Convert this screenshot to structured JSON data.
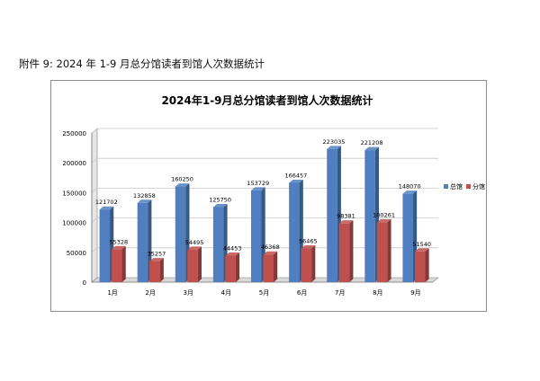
{
  "document": {
    "heading": "附件 9: 2024 年 1-9 月总分馆读者到馆人次数据统计"
  },
  "colors": {
    "series_main": "#4f7fc0",
    "series_branch": "#c0504d",
    "grid": "#c8c8c8",
    "axis": "#808080",
    "frame": "#8c8c8c"
  },
  "chart_data": {
    "type": "bar",
    "title": "2024年1-9月总分馆读者到馆人次数据统计",
    "categories": [
      "1月",
      "2月",
      "3月",
      "4月",
      "5月",
      "6月",
      "7月",
      "8月",
      "9月"
    ],
    "series": [
      {
        "name": "总馆",
        "values": [
          121702,
          132858,
          160250,
          125750,
          153729,
          166457,
          223035,
          221208,
          148070
        ]
      },
      {
        "name": "分馆",
        "values": [
          55328,
          35257,
          54495,
          44453,
          46368,
          56465,
          98381,
          100261,
          51540
        ]
      }
    ],
    "ylim": [
      0,
      250000
    ],
    "yticks": [
      "0",
      "50000",
      "100000",
      "150000",
      "200000",
      "250000"
    ],
    "grid": true,
    "legend_position": "right",
    "bar_style": "3d"
  }
}
